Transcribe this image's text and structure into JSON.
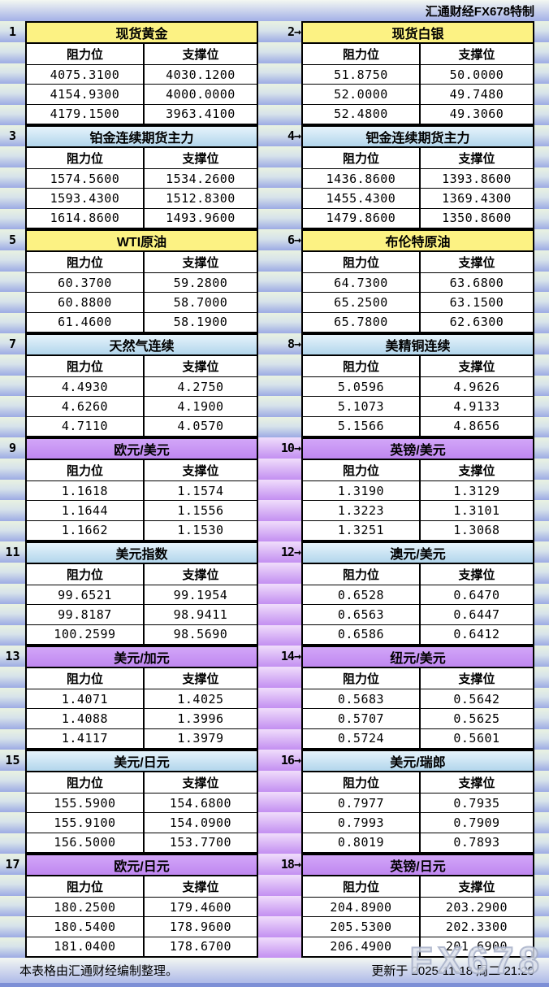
{
  "page": {
    "credit": "汇通财经FX678特制",
    "footer_note": "本表格由汇通财经编制整理。",
    "updated": "更新于 2025-11-18 周二 21:20",
    "watermark": "FX678"
  },
  "columns": {
    "resistance": "阻力位",
    "support": "支撑位"
  },
  "colors": {
    "yellow_header": "#FCF283",
    "blue_header_top": "#E6F3FB",
    "blue_header_bottom": "#B2D6EC",
    "purple_header_top": "#D2A6F8",
    "purple_header_bottom": "#BF87F0",
    "margin_cell_top": "#E9F2E1",
    "margin_cell_bottom": "#9DABE4",
    "gutter_purple_top": "#F0DDFB",
    "gutter_purple_bottom": "#C38FF1",
    "bar_top": "#F3F7F2",
    "bar_bottom": "#A3B0E7",
    "bar_strip": "#7D8FD6"
  },
  "blocks": [
    {
      "label": "1",
      "title": "现货黄金",
      "color": "yellow",
      "rows": [
        [
          "4075.3100",
          "4030.1200"
        ],
        [
          "4154.9300",
          "4000.0000"
        ],
        [
          "4179.1500",
          "3963.4100"
        ]
      ]
    },
    {
      "label": "2→",
      "title": "现货白银",
      "color": "yellow",
      "rows": [
        [
          "51.8750",
          "50.0000"
        ],
        [
          "52.0000",
          "49.7480"
        ],
        [
          "52.4800",
          "49.3060"
        ]
      ]
    },
    {
      "label": "3",
      "title": "铂金连续期货主力",
      "color": "blue",
      "rows": [
        [
          "1574.5600",
          "1534.2600"
        ],
        [
          "1593.4300",
          "1512.8300"
        ],
        [
          "1614.8600",
          "1493.9600"
        ]
      ]
    },
    {
      "label": "4→",
      "title": "钯金连续期货主力",
      "color": "blue",
      "rows": [
        [
          "1436.8600",
          "1393.8600"
        ],
        [
          "1455.4300",
          "1369.4300"
        ],
        [
          "1479.8600",
          "1350.8600"
        ]
      ]
    },
    {
      "label": "5",
      "title": "WTI原油",
      "color": "yellow",
      "rows": [
        [
          "60.3700",
          "59.2800"
        ],
        [
          "60.8800",
          "58.7000"
        ],
        [
          "61.4600",
          "58.1900"
        ]
      ]
    },
    {
      "label": "6→",
      "title": "布伦特原油",
      "color": "yellow",
      "rows": [
        [
          "64.7300",
          "63.6800"
        ],
        [
          "65.2500",
          "63.1500"
        ],
        [
          "65.7800",
          "62.6300"
        ]
      ]
    },
    {
      "label": "7",
      "title": "天然气连续",
      "color": "blue",
      "rows": [
        [
          "4.4930",
          "4.2750"
        ],
        [
          "4.6260",
          "4.1900"
        ],
        [
          "4.7110",
          "4.0570"
        ]
      ]
    },
    {
      "label": "8→",
      "title": "美精铜连续",
      "color": "blue",
      "rows": [
        [
          "5.0596",
          "4.9626"
        ],
        [
          "5.1073",
          "4.9133"
        ],
        [
          "5.1566",
          "4.8656"
        ]
      ]
    },
    {
      "label": "9",
      "title": "欧元/美元",
      "color": "purple",
      "rows": [
        [
          "1.1618",
          "1.1574"
        ],
        [
          "1.1644",
          "1.1556"
        ],
        [
          "1.1662",
          "1.1530"
        ]
      ]
    },
    {
      "label": "10→",
      "title": "英镑/美元",
      "color": "purple",
      "rows": [
        [
          "1.3190",
          "1.3129"
        ],
        [
          "1.3223",
          "1.3101"
        ],
        [
          "1.3251",
          "1.3068"
        ]
      ]
    },
    {
      "label": "11",
      "title": "美元指数",
      "color": "blue",
      "rows": [
        [
          "99.6521",
          "99.1954"
        ],
        [
          "99.8187",
          "98.9411"
        ],
        [
          "100.2599",
          "98.5690"
        ]
      ]
    },
    {
      "label": "12→",
      "title": "澳元/美元",
      "color": "blue",
      "rows": [
        [
          "0.6528",
          "0.6470"
        ],
        [
          "0.6563",
          "0.6447"
        ],
        [
          "0.6586",
          "0.6412"
        ]
      ]
    },
    {
      "label": "13",
      "title": "美元/加元",
      "color": "purple",
      "rows": [
        [
          "1.4071",
          "1.4025"
        ],
        [
          "1.4088",
          "1.3996"
        ],
        [
          "1.4117",
          "1.3979"
        ]
      ]
    },
    {
      "label": "14→",
      "title": "纽元/美元",
      "color": "purple",
      "rows": [
        [
          "0.5683",
          "0.5642"
        ],
        [
          "0.5707",
          "0.5625"
        ],
        [
          "0.5724",
          "0.5601"
        ]
      ]
    },
    {
      "label": "15",
      "title": "美元/日元",
      "color": "blue",
      "rows": [
        [
          "155.5900",
          "154.6800"
        ],
        [
          "155.9100",
          "154.0900"
        ],
        [
          "156.5000",
          "153.7700"
        ]
      ]
    },
    {
      "label": "16→",
      "title": "美元/瑞郎",
      "color": "blue",
      "rows": [
        [
          "0.7977",
          "0.7935"
        ],
        [
          "0.7993",
          "0.7909"
        ],
        [
          "0.8019",
          "0.7893"
        ]
      ]
    },
    {
      "label": "17",
      "title": "欧元/日元",
      "color": "purple",
      "rows": [
        [
          "180.2500",
          "179.4600"
        ],
        [
          "180.5400",
          "178.9600"
        ],
        [
          "181.0400",
          "178.6700"
        ]
      ]
    },
    {
      "label": "18→",
      "title": "英镑/日元",
      "color": "purple",
      "rows": [
        [
          "204.8900",
          "203.2900"
        ],
        [
          "205.5300",
          "202.3300"
        ],
        [
          "206.4900",
          "201.6900"
        ]
      ]
    }
  ]
}
